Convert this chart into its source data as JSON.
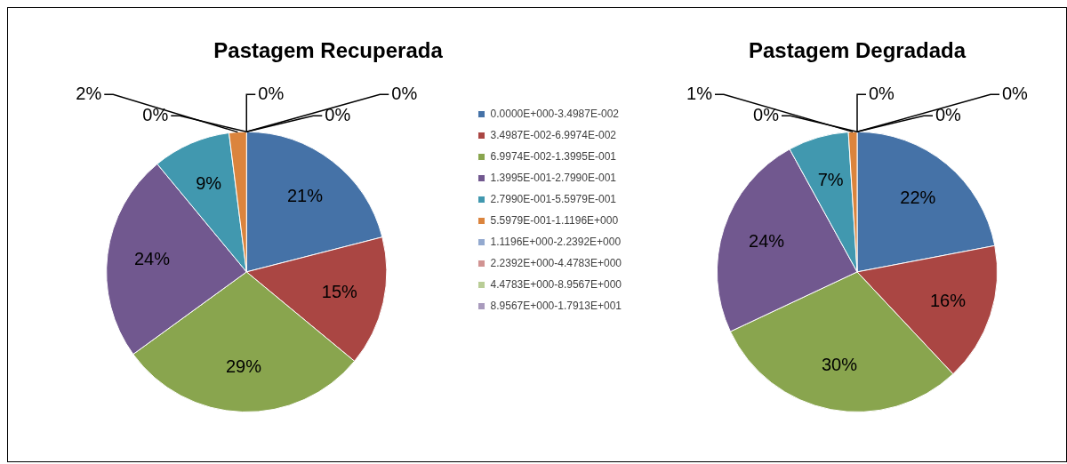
{
  "chart_data": [
    {
      "type": "pie",
      "title": "Pastagem Recuperada",
      "legend": "right",
      "categories": [
        "0.0000E+000-3.4987E-002",
        "3.4987E-002-6.9974E-002",
        "6.9974E-002-1.3995E-001",
        "1.3995E-001-2.7990E-001",
        "2.7990E-001-5.5979E-001",
        "5.5979E-001-1.1196E+000",
        "1.1196E+000-2.2392E+000",
        "2.2392E+000-4.4783E+000",
        "4.4783E+000-8.9567E+000",
        "8.9567E+000-1.7913E+001"
      ],
      "values": [
        21,
        15,
        29,
        24,
        9,
        2,
        0,
        0,
        0,
        0
      ],
      "value_labels": [
        "21%",
        "15%",
        "29%",
        "24%",
        "9%",
        "2%",
        "0%",
        "0%",
        "0%",
        "0%"
      ],
      "colors": [
        "#4572a7",
        "#aa4643",
        "#89a54e",
        "#71588f",
        "#4198af",
        "#db843d",
        "#93a9cf",
        "#d19392",
        "#b9cd96",
        "#a99bbd"
      ]
    },
    {
      "type": "pie",
      "title": "Pastagem Degradada",
      "legend": false,
      "categories": [
        null,
        null,
        null,
        null,
        null,
        null,
        null,
        null,
        null,
        null
      ],
      "values": [
        22,
        16,
        30,
        24,
        7,
        1,
        0,
        0,
        0,
        0
      ],
      "value_labels": [
        "22%",
        "16%",
        "30%",
        "24%",
        "7%",
        "1%",
        "0%",
        "0%",
        "0%",
        "0%"
      ],
      "colors": [
        "#4572a7",
        "#aa4643",
        "#89a54e",
        "#71588f",
        "#4198af",
        "#db843d",
        "#93a9cf",
        "#d19392",
        "#b9cd96",
        "#a99bbd"
      ]
    }
  ]
}
